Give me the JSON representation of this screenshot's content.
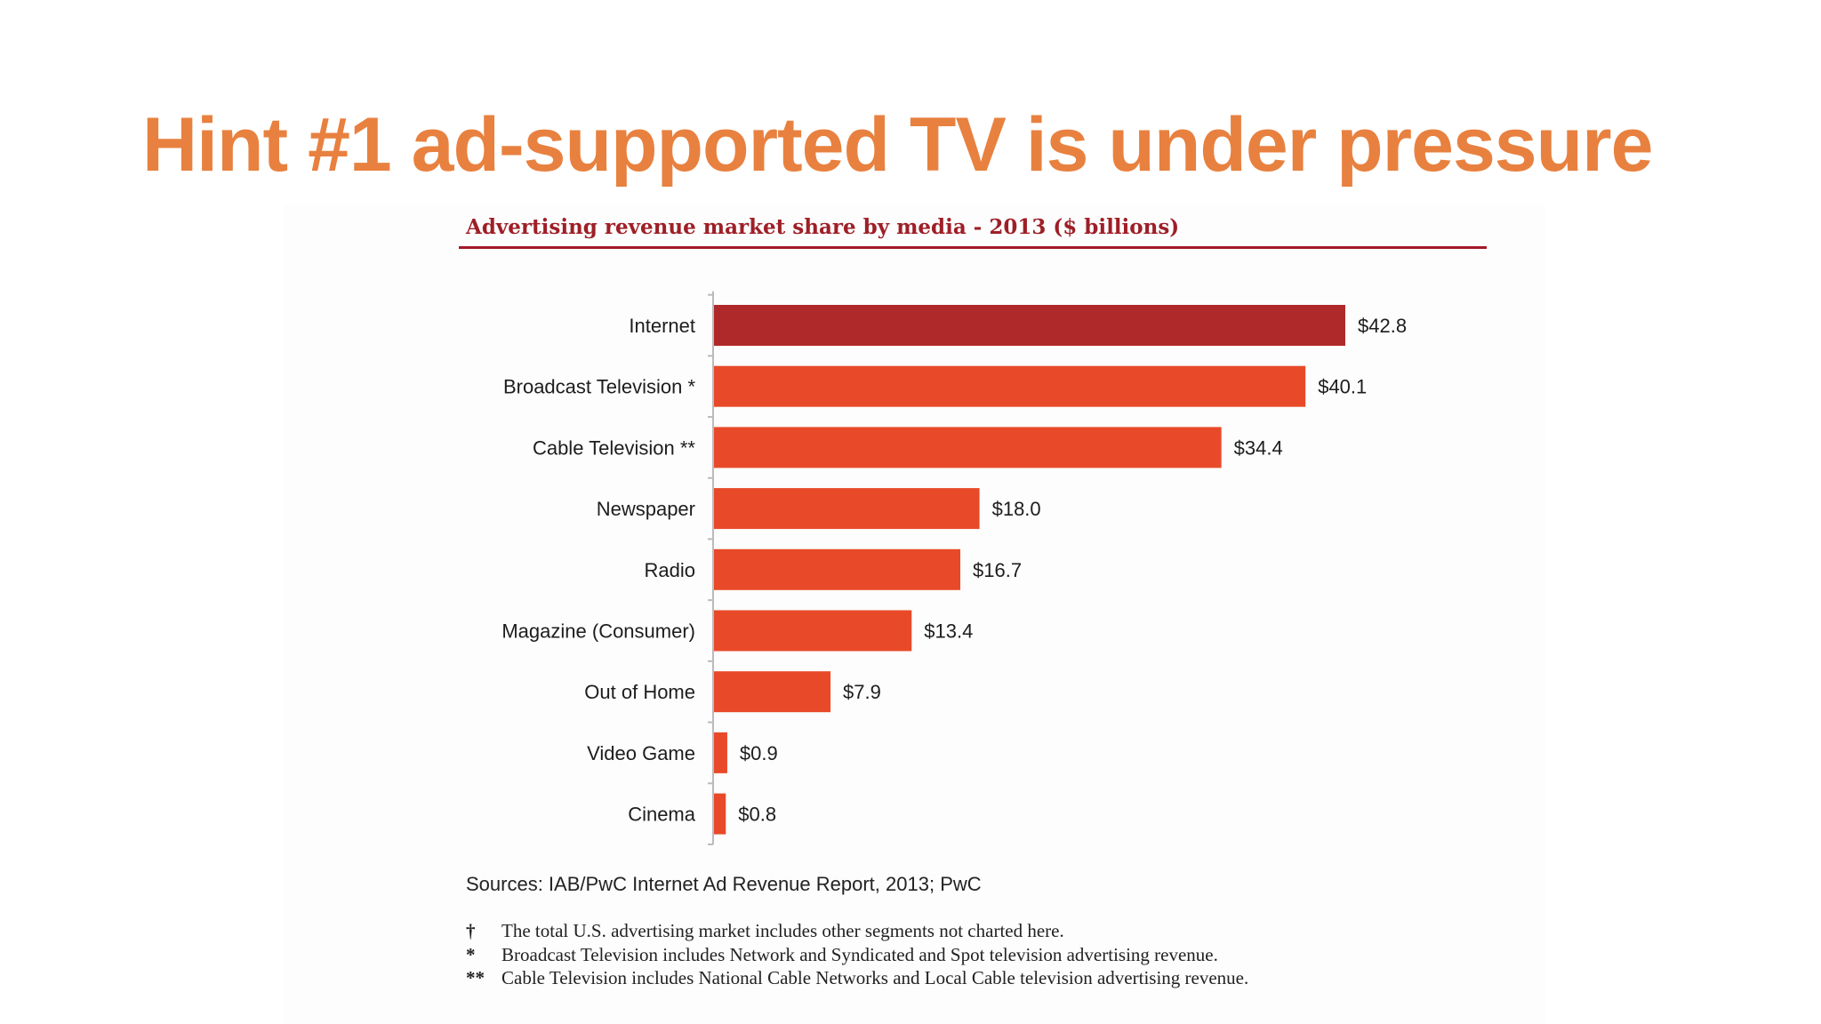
{
  "slide": {
    "title": "Hint #1 ad-supported TV is under pressure"
  },
  "chart_data": {
    "type": "bar",
    "orientation": "horizontal",
    "title": "Advertising revenue market share by media - 2013 ($ billions)",
    "categories": [
      "Internet",
      "Broadcast Television *",
      "Cable Television **",
      "Newspaper",
      "Radio",
      "Magazine (Consumer)",
      "Out of Home",
      "Video Game",
      "Cinema"
    ],
    "values": [
      42.8,
      40.1,
      34.4,
      18.0,
      16.7,
      13.4,
      7.9,
      0.9,
      0.8
    ],
    "value_labels": [
      "$42.8",
      "$40.1",
      "$34.4",
      "$18.0",
      "$16.7",
      "$13.4",
      "$7.9",
      "$0.9",
      "$0.8"
    ],
    "xlim": [
      0,
      42.8
    ],
    "xlabel": "",
    "ylabel": "",
    "grid": false,
    "colors": {
      "highlight": "#b0292a",
      "bar": "#e84a29",
      "title": "#9e1f27",
      "axis": "#bbbbbb"
    }
  },
  "sources": "Sources: IAB/PwC Internet Ad Revenue Report, 2013; PwC",
  "footnotes": [
    {
      "mark": "†",
      "text": "The total U.S. advertising market includes other segments not charted here."
    },
    {
      "mark": "*",
      "text": "Broadcast Television includes Network and Syndicated and Spot television advertising revenue."
    },
    {
      "mark": "**",
      "text": "Cable Television includes National Cable Networks and Local Cable television advertising revenue."
    }
  ]
}
